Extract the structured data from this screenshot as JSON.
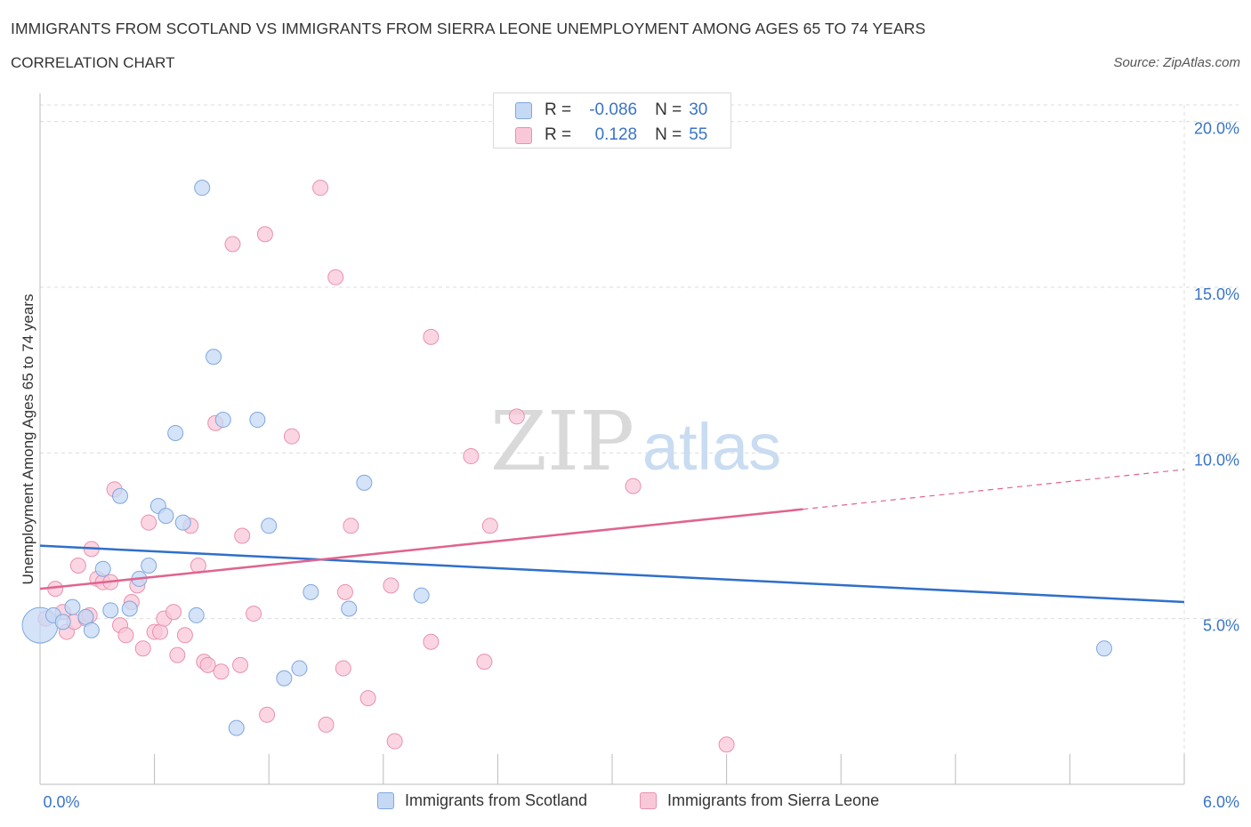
{
  "title": "IMMIGRANTS FROM SCOTLAND VS IMMIGRANTS FROM SIERRA LEONE UNEMPLOYMENT AMONG AGES 65 TO 74 YEARS",
  "subtitle": "CORRELATION CHART",
  "source": "Source: ZipAtlas.com",
  "watermark": {
    "zip": "ZIP",
    "atlas": "atlas"
  },
  "legend": {
    "row1": {
      "r_label": "R =",
      "r_value": "-0.086",
      "n_label": "N =",
      "n_value": "30"
    },
    "row2": {
      "r_label": "R =",
      "r_value": "0.128",
      "n_label": "N =",
      "n_value": "55"
    }
  },
  "bottom_legend": {
    "scotland": "Immigrants from Scotland",
    "sierra_leone": "Immigrants from Sierra Leone"
  },
  "colors": {
    "scotland_fill": "#c5d9f5",
    "scotland_stroke": "#7fa7de",
    "scotland_line": "#2f6fca",
    "sierra_fill": "#f9c8d8",
    "sierra_stroke": "#e891ae",
    "sierra_line": "#e0648f",
    "axis_label": "#3a74c6",
    "grid": "#dcdcdc"
  },
  "chart_data": {
    "type": "scatter",
    "title": "IMMIGRANTS FROM SCOTLAND VS IMMIGRANTS FROM SIERRA LEONE UNEMPLOYMENT AMONG AGES 65 TO 74 YEARS",
    "xlabel": "",
    "ylabel": "Unemployment Among Ages 65 to 74 years",
    "xlim": [
      0,
      6
    ],
    "ylim": [
      0,
      20.5
    ],
    "x_tick_labels": [
      "0.0%",
      "6.0%"
    ],
    "y_ticks": [
      5,
      10,
      15,
      20
    ],
    "y_tick_labels": [
      "5.0%",
      "10.0%",
      "15.0%",
      "20.0%"
    ],
    "grid": true,
    "legend_position": "top-center",
    "series": [
      {
        "name": "Immigrants from Scotland",
        "r": -0.086,
        "n": 30,
        "trend": {
          "x0": 0,
          "y0": 7.2,
          "x1": 6,
          "y1": 5.5
        },
        "points": [
          {
            "x": 0.0,
            "y": 4.8,
            "big": true
          },
          {
            "x": 0.07,
            "y": 5.1
          },
          {
            "x": 0.12,
            "y": 4.9
          },
          {
            "x": 0.17,
            "y": 5.35
          },
          {
            "x": 0.24,
            "y": 5.05
          },
          {
            "x": 0.27,
            "y": 4.65
          },
          {
            "x": 0.33,
            "y": 6.5
          },
          {
            "x": 0.37,
            "y": 5.25
          },
          {
            "x": 0.42,
            "y": 8.7
          },
          {
            "x": 0.47,
            "y": 5.3
          },
          {
            "x": 0.52,
            "y": 6.2
          },
          {
            "x": 0.57,
            "y": 6.6
          },
          {
            "x": 0.62,
            "y": 8.4
          },
          {
            "x": 0.66,
            "y": 8.1
          },
          {
            "x": 0.71,
            "y": 10.6
          },
          {
            "x": 0.75,
            "y": 7.9
          },
          {
            "x": 0.82,
            "y": 5.1
          },
          {
            "x": 0.85,
            "y": 18.0
          },
          {
            "x": 0.91,
            "y": 12.9
          },
          {
            "x": 0.96,
            "y": 11.0
          },
          {
            "x": 1.03,
            "y": 1.7
          },
          {
            "x": 1.14,
            "y": 11.0
          },
          {
            "x": 1.2,
            "y": 7.8
          },
          {
            "x": 1.28,
            "y": 3.2
          },
          {
            "x": 1.36,
            "y": 3.5
          },
          {
            "x": 1.42,
            "y": 5.8
          },
          {
            "x": 1.62,
            "y": 5.3
          },
          {
            "x": 1.7,
            "y": 9.1
          },
          {
            "x": 2.0,
            "y": 5.7
          },
          {
            "x": 5.58,
            "y": 4.1
          }
        ]
      },
      {
        "name": "Immigrants from Sierra Leone",
        "r": 0.128,
        "n": 55,
        "trend": {
          "x0": 0,
          "y0": 5.9,
          "x1": 4.0,
          "y1": 8.3,
          "dash_to_x": 6,
          "dash_to_y": 9.5
        },
        "points": [
          {
            "x": 0.03,
            "y": 5.0
          },
          {
            "x": 0.08,
            "y": 5.9
          },
          {
            "x": 0.12,
            "y": 5.2
          },
          {
            "x": 0.14,
            "y": 4.6
          },
          {
            "x": 0.18,
            "y": 4.9
          },
          {
            "x": 0.2,
            "y": 6.6
          },
          {
            "x": 0.24,
            "y": 5.0
          },
          {
            "x": 0.26,
            "y": 5.1
          },
          {
            "x": 0.27,
            "y": 7.1
          },
          {
            "x": 0.3,
            "y": 6.2
          },
          {
            "x": 0.33,
            "y": 6.1
          },
          {
            "x": 0.37,
            "y": 6.1
          },
          {
            "x": 0.39,
            "y": 8.9
          },
          {
            "x": 0.42,
            "y": 4.8
          },
          {
            "x": 0.45,
            "y": 4.5
          },
          {
            "x": 0.48,
            "y": 5.5
          },
          {
            "x": 0.51,
            "y": 6.0
          },
          {
            "x": 0.54,
            "y": 4.1
          },
          {
            "x": 0.57,
            "y": 7.9
          },
          {
            "x": 0.6,
            "y": 4.6
          },
          {
            "x": 0.63,
            "y": 4.6
          },
          {
            "x": 0.65,
            "y": 5.0
          },
          {
            "x": 0.7,
            "y": 5.2
          },
          {
            "x": 0.72,
            "y": 3.9
          },
          {
            "x": 0.76,
            "y": 4.5
          },
          {
            "x": 0.79,
            "y": 7.8
          },
          {
            "x": 0.83,
            "y": 6.6
          },
          {
            "x": 0.86,
            "y": 3.7
          },
          {
            "x": 0.88,
            "y": 3.6
          },
          {
            "x": 0.95,
            "y": 3.4
          },
          {
            "x": 0.92,
            "y": 10.9
          },
          {
            "x": 1.01,
            "y": 16.3
          },
          {
            "x": 1.05,
            "y": 3.6
          },
          {
            "x": 1.06,
            "y": 7.5
          },
          {
            "x": 1.12,
            "y": 5.15
          },
          {
            "x": 1.18,
            "y": 16.6
          },
          {
            "x": 1.19,
            "y": 2.1
          },
          {
            "x": 1.32,
            "y": 10.5
          },
          {
            "x": 1.47,
            "y": 18.0
          },
          {
            "x": 1.5,
            "y": 1.8
          },
          {
            "x": 1.55,
            "y": 15.3
          },
          {
            "x": 1.59,
            "y": 3.5
          },
          {
            "x": 1.6,
            "y": 5.8
          },
          {
            "x": 1.63,
            "y": 7.8
          },
          {
            "x": 1.72,
            "y": 2.6
          },
          {
            "x": 1.84,
            "y": 6.0
          },
          {
            "x": 1.86,
            "y": 1.3
          },
          {
            "x": 2.05,
            "y": 4.3
          },
          {
            "x": 2.05,
            "y": 13.5
          },
          {
            "x": 2.26,
            "y": 9.9
          },
          {
            "x": 2.33,
            "y": 3.7
          },
          {
            "x": 2.36,
            "y": 7.8
          },
          {
            "x": 2.5,
            "y": 11.1
          },
          {
            "x": 3.11,
            "y": 9.0
          },
          {
            "x": 3.6,
            "y": 1.2
          }
        ]
      }
    ]
  }
}
